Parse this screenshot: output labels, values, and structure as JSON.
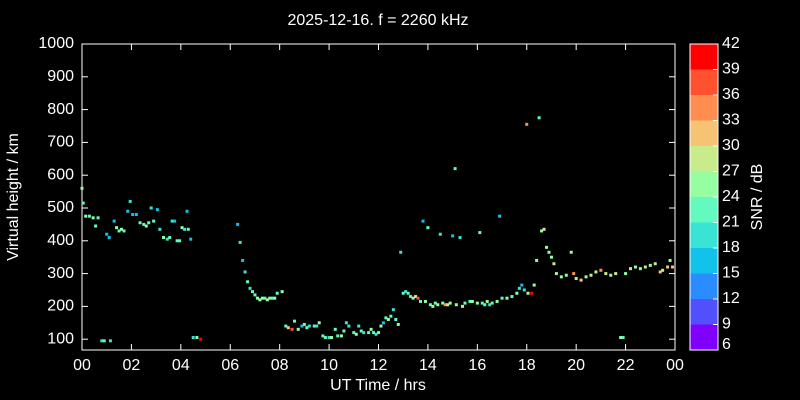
{
  "chart_data": {
    "type": "scatter",
    "title": "2025-12-16. f = 2260 kHz",
    "x_label": "UT Time / hrs",
    "y_label": "Virtual height / km",
    "xlim": [
      0,
      24
    ],
    "ylim": [
      67,
      1000
    ],
    "xticks": [
      {
        "value": 0,
        "label": "00"
      },
      {
        "value": 2,
        "label": "02"
      },
      {
        "value": 4,
        "label": "04"
      },
      {
        "value": 6,
        "label": "06"
      },
      {
        "value": 8,
        "label": "08"
      },
      10,
      12,
      14,
      16,
      18,
      20,
      22,
      {
        "value": 24,
        "label": "00"
      }
    ],
    "yticks": [
      100,
      200,
      300,
      400,
      500,
      600,
      700,
      800,
      900,
      1000
    ],
    "colorbar": {
      "label": "SNR / dB",
      "lim": [
        6,
        42
      ],
      "ticks": [
        6,
        9,
        12,
        15,
        18,
        21,
        24,
        27,
        30,
        33,
        36,
        39,
        42
      ],
      "colors": [
        "#8000ff",
        "#5050ff",
        "#2a8cff",
        "#12c2e8",
        "#3ae4d4",
        "#64fabf",
        "#96fea0",
        "#c8ec8c",
        "#f6c274",
        "#ff8c50",
        "#ff5030",
        "#ff0000"
      ]
    },
    "x": [
      0.0,
      0.05,
      0.15,
      0.3,
      0.45,
      0.55,
      0.65,
      0.8,
      0.9,
      1.0,
      1.1,
      1.15,
      1.3,
      1.4,
      1.5,
      1.6,
      1.7,
      1.85,
      1.95,
      2.05,
      2.2,
      2.35,
      2.5,
      2.6,
      2.7,
      2.8,
      2.9,
      3.05,
      3.15,
      3.3,
      3.45,
      3.55,
      3.65,
      3.75,
      3.85,
      3.95,
      4.05,
      4.15,
      4.25,
      4.3,
      4.4,
      4.5,
      4.65,
      4.8,
      6.3,
      6.4,
      6.5,
      6.6,
      6.7,
      6.8,
      6.9,
      7.0,
      7.1,
      7.2,
      7.3,
      7.4,
      7.5,
      7.6,
      7.7,
      7.8,
      7.9,
      8.1,
      8.25,
      8.35,
      8.5,
      8.6,
      8.75,
      8.9,
      9.0,
      9.1,
      9.2,
      9.4,
      9.5,
      9.6,
      9.75,
      9.85,
      10.0,
      10.1,
      10.25,
      10.35,
      10.5,
      10.6,
      10.7,
      10.8,
      11.0,
      11.1,
      11.2,
      11.3,
      11.4,
      11.6,
      11.7,
      11.8,
      11.9,
      12.0,
      12.1,
      12.2,
      12.3,
      12.4,
      12.5,
      12.6,
      12.7,
      12.8,
      12.9,
      13.0,
      13.1,
      13.2,
      13.3,
      13.4,
      13.5,
      13.6,
      13.7,
      13.8,
      13.9,
      14.0,
      14.1,
      14.2,
      14.3,
      14.4,
      14.5,
      14.6,
      14.7,
      14.8,
      14.9,
      15.0,
      15.1,
      15.15,
      15.3,
      15.4,
      15.5,
      15.7,
      15.8,
      16.0,
      16.1,
      16.2,
      16.3,
      16.4,
      16.5,
      16.6,
      16.8,
      16.9,
      17.0,
      17.2,
      17.4,
      17.6,
      17.7,
      17.8,
      17.9,
      18.0,
      18.05,
      18.2,
      18.3,
      18.4,
      18.5,
      18.6,
      18.7,
      18.8,
      18.9,
      19.0,
      19.1,
      19.2,
      19.4,
      19.6,
      19.8,
      19.9,
      20.0,
      20.2,
      20.4,
      20.6,
      20.8,
      21.0,
      21.2,
      21.4,
      21.6,
      21.8,
      21.9,
      22.0,
      22.2,
      22.4,
      22.6,
      22.8,
      23.0,
      23.2,
      23.4,
      23.5,
      23.7,
      23.8,
      23.9
    ],
    "y": [
      560,
      515,
      475,
      475,
      470,
      445,
      470,
      95,
      95,
      420,
      410,
      95,
      460,
      440,
      430,
      435,
      430,
      490,
      520,
      480,
      480,
      455,
      450,
      445,
      455,
      500,
      460,
      495,
      435,
      410,
      405,
      410,
      460,
      460,
      400,
      400,
      440,
      435,
      490,
      435,
      405,
      105,
      105,
      100,
      450,
      395,
      340,
      305,
      275,
      255,
      245,
      235,
      225,
      220,
      225,
      225,
      220,
      225,
      225,
      225,
      240,
      245,
      140,
      135,
      130,
      155,
      130,
      140,
      145,
      135,
      140,
      140,
      140,
      150,
      110,
      105,
      105,
      105,
      130,
      110,
      110,
      125,
      150,
      140,
      120,
      115,
      140,
      125,
      120,
      120,
      130,
      120,
      115,
      120,
      140,
      150,
      165,
      160,
      170,
      190,
      160,
      145,
      365,
      240,
      245,
      240,
      230,
      225,
      230,
      225,
      215,
      460,
      215,
      440,
      205,
      200,
      210,
      205,
      420,
      210,
      205,
      205,
      210,
      415,
      620,
      205,
      410,
      200,
      210,
      215,
      215,
      210,
      425,
      210,
      205,
      215,
      205,
      210,
      215,
      475,
      225,
      225,
      230,
      240,
      255,
      265,
      250,
      755,
      240,
      240,
      265,
      340,
      775,
      430,
      435,
      380,
      365,
      350,
      330,
      300,
      290,
      295,
      365,
      300,
      285,
      280,
      290,
      295,
      305,
      310,
      300,
      295,
      300,
      105,
      105,
      300,
      315,
      320,
      315,
      320,
      325,
      330,
      305,
      310,
      320,
      340,
      320
    ],
    "snr": [
      24,
      21,
      24,
      21,
      24,
      21,
      21,
      18,
      21,
      15,
      15,
      18,
      15,
      24,
      21,
      24,
      21,
      15,
      18,
      15,
      15,
      21,
      21,
      24,
      21,
      18,
      21,
      15,
      18,
      24,
      18,
      21,
      18,
      15,
      21,
      21,
      24,
      18,
      15,
      21,
      15,
      18,
      24,
      39,
      15,
      18,
      15,
      18,
      21,
      18,
      21,
      21,
      24,
      24,
      24,
      21,
      24,
      24,
      21,
      24,
      21,
      24,
      21,
      30,
      36,
      21,
      24,
      15,
      21,
      21,
      18,
      21,
      18,
      24,
      21,
      21,
      18,
      24,
      21,
      21,
      24,
      21,
      18,
      18,
      21,
      24,
      18,
      21,
      18,
      21,
      24,
      21,
      18,
      21,
      24,
      15,
      21,
      24,
      21,
      18,
      21,
      24,
      18,
      21,
      18,
      21,
      21,
      24,
      27,
      36,
      21,
      15,
      24,
      21,
      21,
      24,
      21,
      24,
      18,
      24,
      33,
      27,
      24,
      15,
      21,
      24,
      18,
      24,
      21,
      21,
      24,
      24,
      21,
      21,
      21,
      24,
      18,
      21,
      24,
      15,
      21,
      24,
      21,
      24,
      18,
      15,
      18,
      33,
      24,
      39,
      24,
      24,
      21,
      24,
      27,
      24,
      24,
      24,
      27,
      24,
      24,
      24,
      24,
      33,
      24,
      30,
      24,
      27,
      27,
      33,
      27,
      24,
      27,
      24,
      21,
      24,
      27,
      24,
      24,
      27,
      24,
      27,
      30,
      27,
      30,
      24,
      30
    ]
  }
}
